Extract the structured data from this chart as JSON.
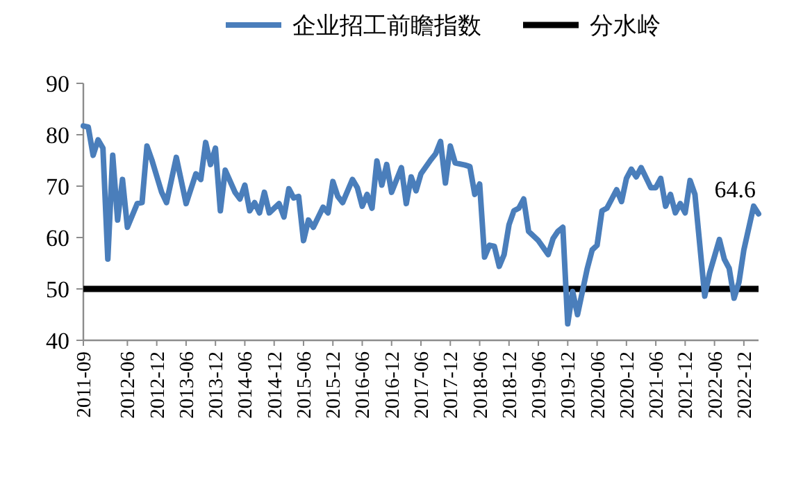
{
  "chart_data": {
    "type": "line",
    "xlim": [
      "2011-09",
      "2023-03"
    ],
    "ylim": [
      40,
      90
    ],
    "xticks": [
      "2011-09",
      "2012-06",
      "2012-12",
      "2013-06",
      "2013-12",
      "2014-06",
      "2014-12",
      "2015-06",
      "2015-12",
      "2016-06",
      "2016-12",
      "2017-06",
      "2017-12",
      "2018-06",
      "2018-12",
      "2019-06",
      "2019-12",
      "2020-06",
      "2020-12",
      "2021-06",
      "2021-12",
      "2022-06",
      "2022-12"
    ],
    "yticks": [
      40,
      50,
      60,
      70,
      80,
      90
    ],
    "legend": "top",
    "series": [
      {
        "name": "企业招工前瞻指数",
        "color": "#4a7ebb",
        "x": [
          "2011-09",
          "2011-10",
          "2011-11",
          "2011-12",
          "2012-01",
          "2012-02",
          "2012-03",
          "2012-04",
          "2012-05",
          "2012-06",
          "2012-08",
          "2012-09",
          "2012-10",
          "2012-11",
          "2013-01",
          "2013-02",
          "2013-04",
          "2013-06",
          "2013-08",
          "2013-09",
          "2013-10",
          "2013-11",
          "2013-12",
          "2014-01",
          "2014-02",
          "2014-04",
          "2014-05",
          "2014-06",
          "2014-07",
          "2014-08",
          "2014-09",
          "2014-10",
          "2014-11",
          "2015-01",
          "2015-02",
          "2015-03",
          "2015-04",
          "2015-05",
          "2015-06",
          "2015-07",
          "2015-08",
          "2015-10",
          "2015-11",
          "2015-12",
          "2016-01",
          "2016-02",
          "2016-04",
          "2016-05",
          "2016-06",
          "2016-07",
          "2016-08",
          "2016-09",
          "2016-10",
          "2016-11",
          "2016-12",
          "2017-02",
          "2017-03",
          "2017-04",
          "2017-05",
          "2017-06",
          "2017-08",
          "2017-09",
          "2017-10",
          "2017-11",
          "2017-12",
          "2018-01",
          "2018-03",
          "2018-04",
          "2018-05",
          "2018-06",
          "2018-07",
          "2018-08",
          "2018-09",
          "2018-10",
          "2018-11",
          "2018-12",
          "2019-01",
          "2019-02",
          "2019-03",
          "2019-04",
          "2019-06",
          "2019-08",
          "2019-09",
          "2019-10",
          "2019-11",
          "2019-12",
          "2020-01",
          "2020-02",
          "2020-04",
          "2020-05",
          "2020-06",
          "2020-07",
          "2020-08",
          "2020-09",
          "2020-10",
          "2020-11",
          "2020-12",
          "2021-01",
          "2021-02",
          "2021-03",
          "2021-05",
          "2021-06",
          "2021-07",
          "2021-08",
          "2021-09",
          "2021-10",
          "2021-11",
          "2021-12",
          "2022-01",
          "2022-02",
          "2022-04",
          "2022-05",
          "2022-07",
          "2022-08",
          "2022-09",
          "2022-10",
          "2022-11",
          "2022-12",
          "2023-02",
          "2023-03"
        ],
        "values": [
          81.7,
          81.5,
          76,
          79,
          77.4,
          55.8,
          76,
          63.4,
          71.3,
          62,
          66.6,
          66.8,
          77.8,
          75.1,
          68.8,
          66.8,
          75.6,
          66.6,
          72.4,
          71.3,
          78.5,
          74.2,
          77.4,
          65.2,
          73.1,
          68.8,
          67.5,
          70.2,
          65.2,
          66.8,
          64.8,
          68.8,
          64.8,
          66.6,
          64,
          69.5,
          67.7,
          68,
          59.4,
          63.4,
          62,
          65.9,
          64.8,
          70.9,
          68,
          66.8,
          71.3,
          69.7,
          66.1,
          68.4,
          65.7,
          74.9,
          70.2,
          74.2,
          68.8,
          73.6,
          66.6,
          71.8,
          69.1,
          72.4,
          75.1,
          76.3,
          78.7,
          70.6,
          77.8,
          74.5,
          74.1,
          73.8,
          68.4,
          70.4,
          56.2,
          58.5,
          58.3,
          54.4,
          56.7,
          62.5,
          65.2,
          65.7,
          67.5,
          61.2,
          59.4,
          56.7,
          59.8,
          61.2,
          62,
          43.2,
          49.5,
          45,
          54,
          57.6,
          58.5,
          65.2,
          65.7,
          67.5,
          69.3,
          67,
          71.5,
          73.3,
          71.8,
          73.6,
          69.7,
          69.7,
          71.5,
          66.1,
          68.4,
          64.8,
          66.6,
          64.8,
          71.1,
          68.4,
          48.6,
          53.1,
          59.6,
          55.8,
          54,
          48.2,
          51.3,
          57.6,
          66.1,
          64.6
        ]
      }
    ],
    "ref_lines": [
      {
        "axis": "y",
        "value": 50,
        "label": "分水岭",
        "color": "#000000"
      }
    ],
    "annotations": [
      {
        "text": "64.6",
        "x": "2023-03",
        "y": 64.6
      }
    ]
  }
}
